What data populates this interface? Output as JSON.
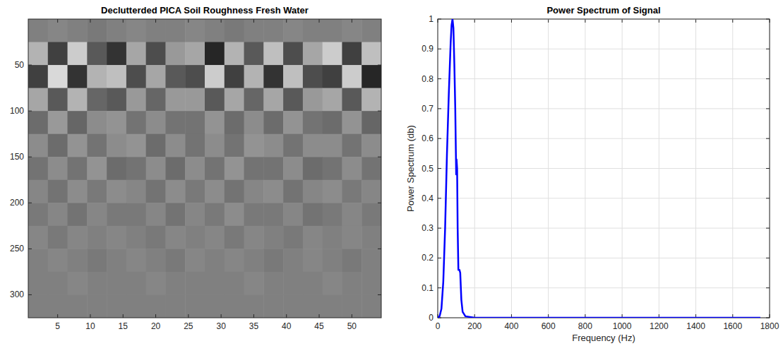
{
  "chart_data": [
    {
      "type": "heatmap",
      "title": "Declutterded PICA Soil Roughness Fresh Water",
      "xlim": [
        0.5,
        54.5
      ],
      "xticks": [
        5,
        10,
        15,
        20,
        25,
        30,
        35,
        40,
        45,
        50
      ],
      "ylim": [
        325,
        0
      ],
      "yticks": [
        50,
        100,
        150,
        200,
        250,
        300
      ],
      "color_range": [
        -1,
        1
      ],
      "color": "gray",
      "x_edges": [
        0.5,
        3.5,
        6.5,
        9.5,
        12.5,
        15.5,
        18.5,
        21.5,
        24.5,
        27.5,
        30.5,
        33.5,
        36.5,
        39.5,
        42.5,
        45.5,
        48.5,
        51.5,
        54.5
      ],
      "y_edges": [
        0,
        25,
        50,
        75,
        100,
        125,
        150,
        175,
        200,
        225,
        250,
        275,
        300,
        325
      ],
      "cells": [
        [
          0,
          0.05,
          0,
          -0.05,
          0,
          0.05,
          0,
          0,
          0.05,
          0,
          -0.05,
          0,
          0,
          0.05,
          0,
          0,
          0.05,
          0
        ],
        [
          0.4,
          -0.5,
          0.6,
          -0.3,
          -0.6,
          0.3,
          -0.4,
          0.2,
          0.3,
          -0.7,
          0.4,
          -0.3,
          0.5,
          -0.4,
          0.3,
          0.6,
          -0.5,
          0.5
        ],
        [
          -0.5,
          0.7,
          -0.6,
          0.4,
          0.5,
          -0.4,
          0.3,
          -0.3,
          -0.4,
          0.6,
          -0.5,
          0.4,
          -0.6,
          0.5,
          -0.4,
          -0.5,
          0.6,
          -0.7
        ],
        [
          0.3,
          -0.3,
          0.4,
          -0.2,
          -0.3,
          0.2,
          -0.2,
          0.2,
          0.2,
          -0.3,
          0.3,
          -0.2,
          0.3,
          -0.3,
          0.2,
          0.3,
          -0.3,
          0.4
        ],
        [
          -0.15,
          0.2,
          -0.2,
          0.1,
          0.15,
          -0.1,
          0.1,
          -0.1,
          -0.1,
          0.15,
          -0.15,
          0.1,
          -0.15,
          0.15,
          -0.1,
          -0.15,
          0.15,
          -0.2
        ],
        [
          0.1,
          -0.15,
          0.15,
          -0.1,
          0.1,
          0.15,
          -0.15,
          0.1,
          -0.1,
          0.1,
          -0.1,
          0.15,
          0.1,
          -0.1,
          0.1,
          0.1,
          -0.1,
          0.1
        ],
        [
          -0.1,
          0.1,
          -0.1,
          0.15,
          -0.15,
          -0.1,
          0.1,
          -0.15,
          0.1,
          -0.1,
          0.15,
          -0.1,
          -0.1,
          0.1,
          -0.15,
          -0.1,
          0.1,
          -0.1
        ],
        [
          0.05,
          -0.1,
          0.1,
          -0.05,
          0.1,
          0.05,
          -0.1,
          0.1,
          -0.05,
          0.1,
          -0.1,
          0.05,
          0.1,
          -0.1,
          0.05,
          0.1,
          -0.05,
          0.05
        ],
        [
          -0.05,
          0.05,
          -0.1,
          0.05,
          -0.05,
          -0.05,
          0.05,
          -0.1,
          0.05,
          -0.05,
          0.1,
          -0.05,
          -0.05,
          0.05,
          -0.1,
          -0.05,
          0.05,
          -0.05
        ],
        [
          0.05,
          -0.05,
          0.05,
          0,
          0.05,
          0,
          -0.05,
          0.05,
          0,
          0.05,
          -0.05,
          0.05,
          0,
          -0.05,
          0.05,
          0,
          0.05,
          0
        ],
        [
          0,
          0.05,
          0,
          -0.05,
          0,
          0.05,
          0,
          -0.05,
          0.05,
          0,
          0.05,
          0,
          -0.05,
          0,
          0.05,
          0,
          -0.05,
          0
        ],
        [
          0,
          0,
          0.05,
          0,
          0,
          0,
          0.05,
          0,
          0,
          0,
          0,
          0.05,
          0,
          0,
          0,
          0.05,
          0,
          0
        ],
        [
          0,
          0,
          0,
          0,
          0,
          0,
          0,
          0,
          0,
          0,
          0,
          0,
          0,
          0,
          0,
          0,
          0,
          0
        ]
      ]
    },
    {
      "type": "line",
      "title": "Power Spectrum of Signal",
      "x_label": "Frequency (Hz)",
      "y_label": "Power Spectrum (db)",
      "xlim": [
        0,
        1800
      ],
      "xticks": [
        0,
        200,
        400,
        600,
        800,
        1000,
        1200,
        1400,
        1600,
        1800
      ],
      "ylim": [
        0,
        1
      ],
      "yticks": [
        0,
        0.1,
        0.2,
        0.3,
        0.4,
        0.5,
        0.6,
        0.7,
        0.8,
        0.9,
        1
      ],
      "grid": true,
      "color": "#0000ff",
      "x": [
        0,
        10,
        20,
        30,
        40,
        50,
        60,
        70,
        75,
        80,
        85,
        90,
        95,
        100,
        102,
        105,
        108,
        112,
        118,
        122,
        128,
        135,
        150,
        200,
        400,
        600,
        800,
        1000,
        1200,
        1400,
        1600,
        1750
      ],
      "values": [
        0,
        0.005,
        0.03,
        0.12,
        0.3,
        0.55,
        0.75,
        0.92,
        0.98,
        1.0,
        0.97,
        0.85,
        0.7,
        0.48,
        0.53,
        0.5,
        0.3,
        0.16,
        0.16,
        0.15,
        0.06,
        0.02,
        0.005,
        0,
        0,
        0,
        0,
        0,
        0,
        0,
        0,
        0
      ]
    }
  ]
}
